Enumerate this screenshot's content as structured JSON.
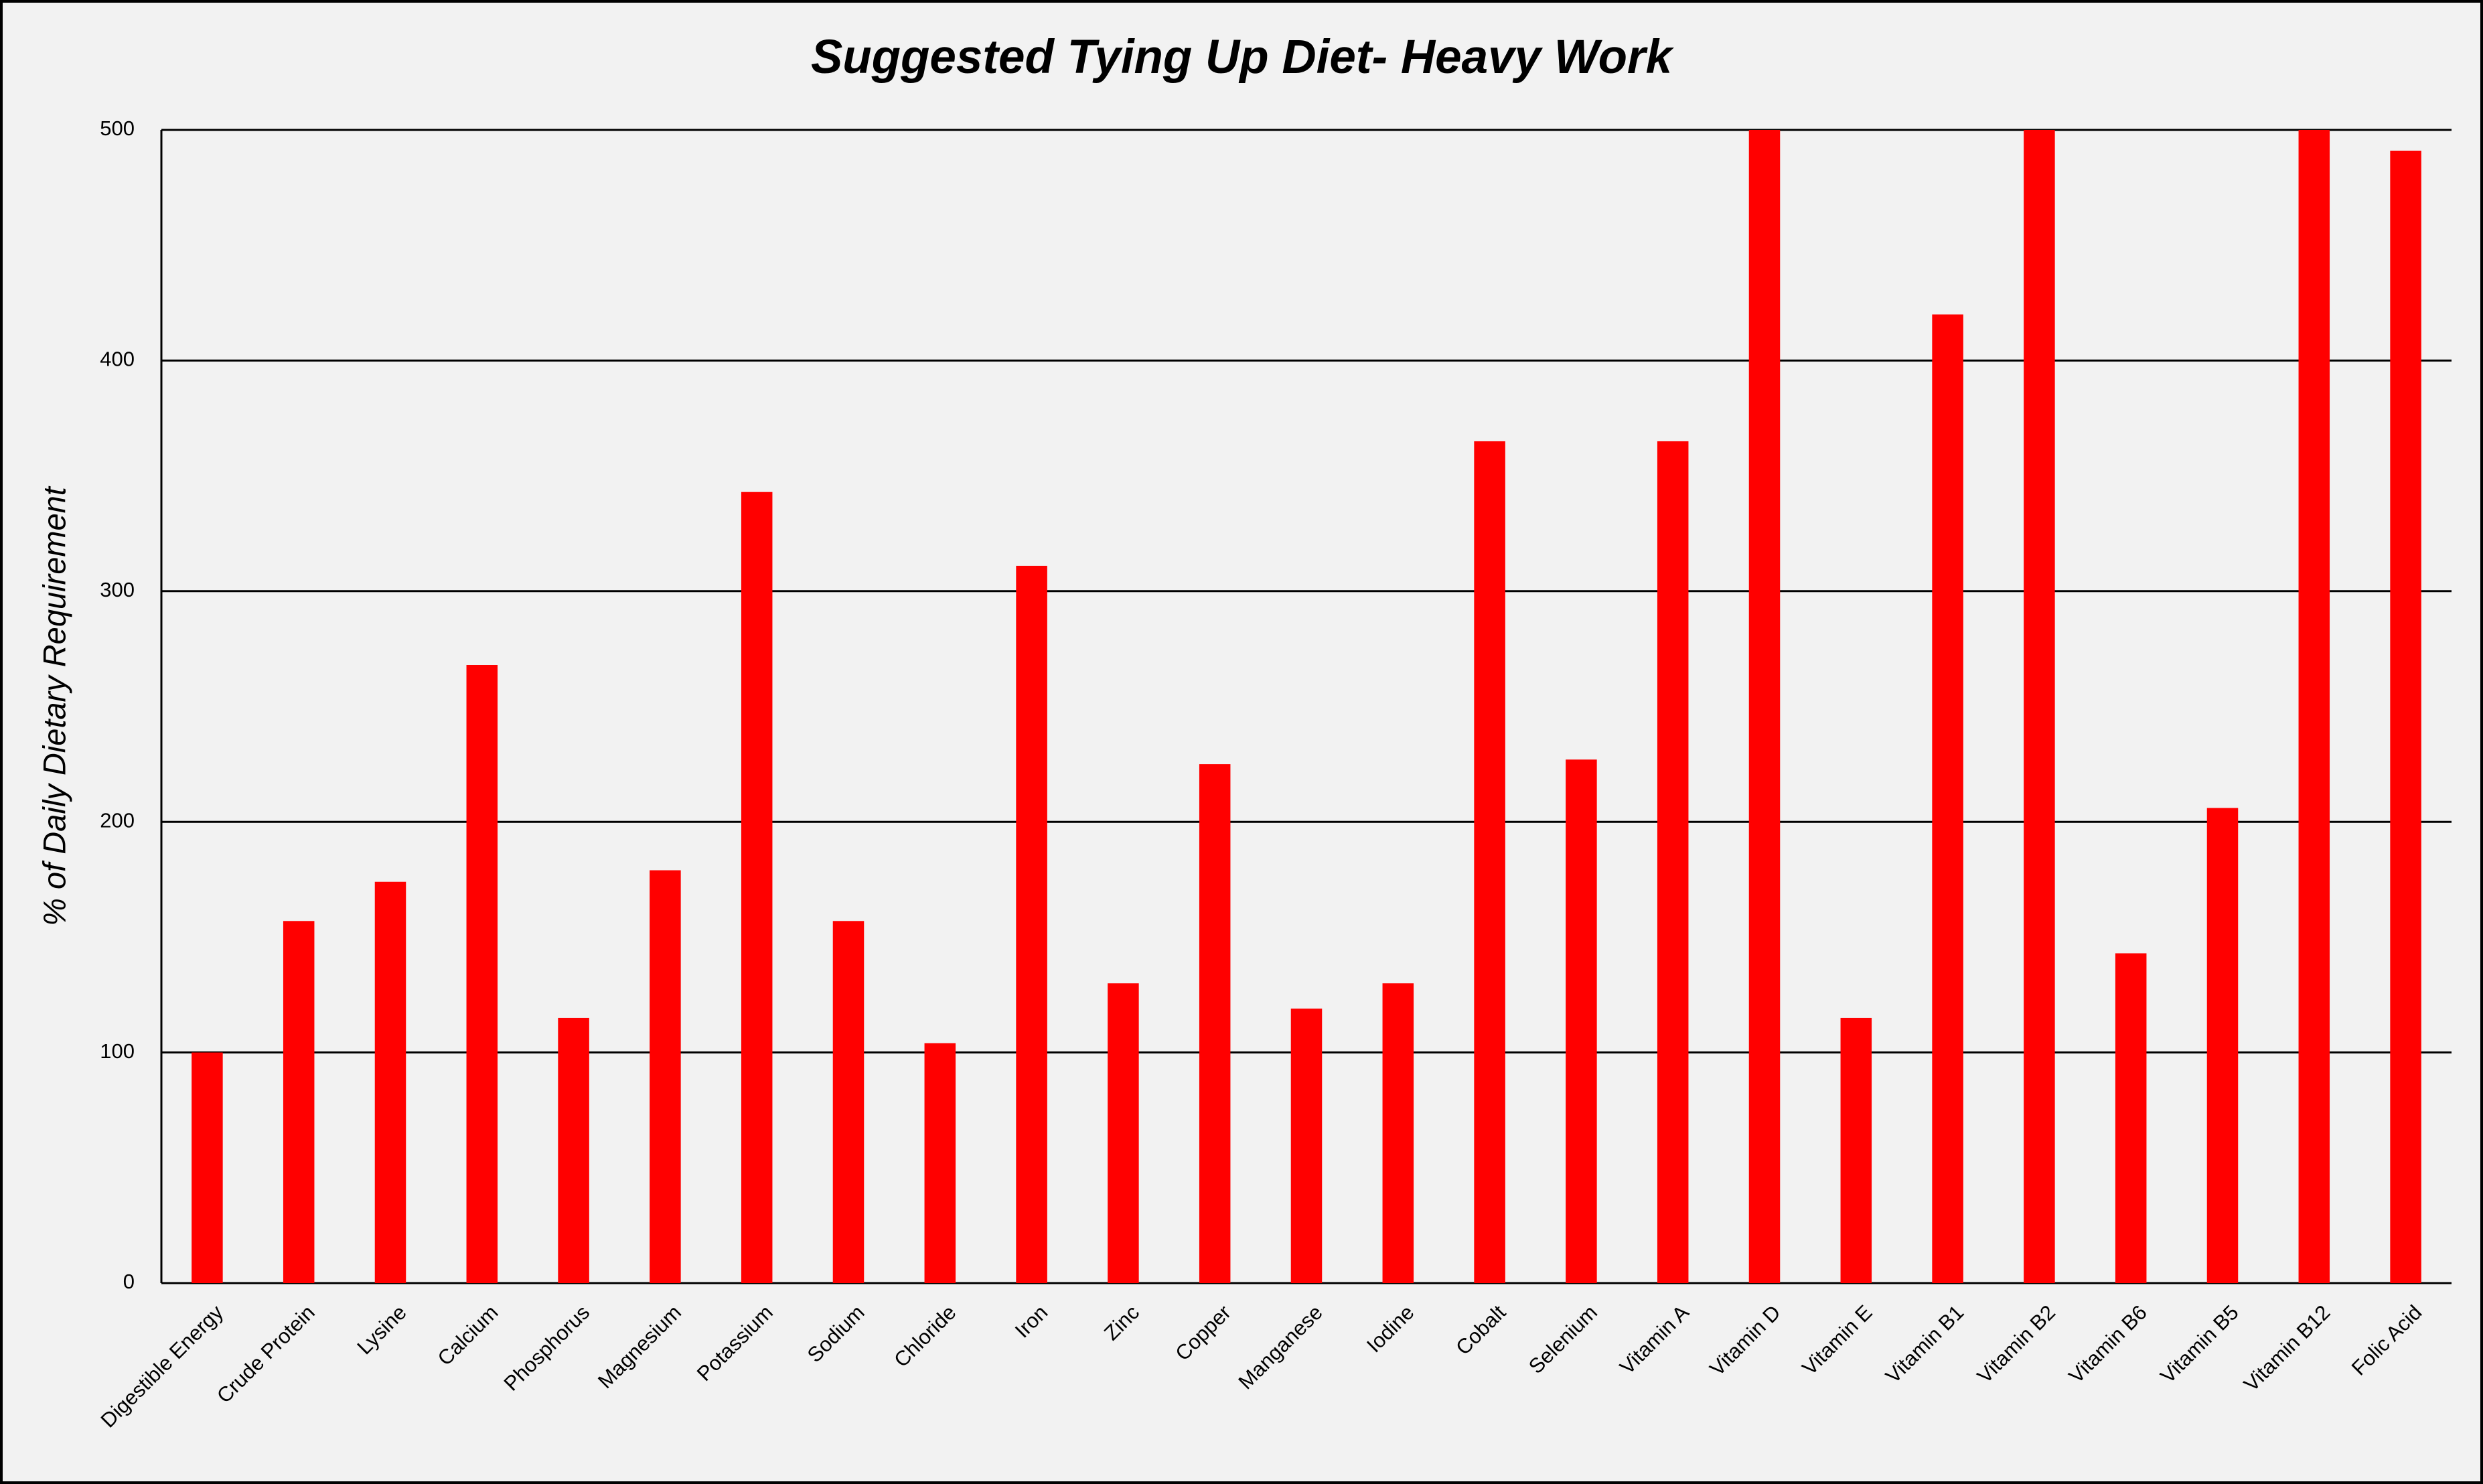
{
  "chart_data": {
    "type": "bar",
    "title": "Suggested Tying Up Diet- Heavy Work",
    "y_label": "% of Daily Dietary Requirement",
    "categories": [
      "Digestible Energy",
      "Crude Protein",
      "Lysine",
      "Calcium",
      "Phosphorus",
      "Magnesium",
      "Potassium",
      "Sodium",
      "Chloride",
      "Iron",
      "Zinc",
      "Copper",
      "Manganese",
      "Iodine",
      "Cobalt",
      "Selenium",
      "Vitamin A",
      "Vitamin D",
      "Vitamin E",
      "Vitamin B1",
      "Vitamin B2",
      "Vitamin B6",
      "Vitamin B5",
      "Vitamin B12",
      "Folic Acid"
    ],
    "values": [
      100,
      157,
      174,
      268,
      115,
      179,
      343,
      157,
      104,
      311,
      130,
      225,
      119,
      130,
      365,
      227,
      365,
      500,
      115,
      420,
      500,
      143,
      206,
      500,
      491
    ],
    "color": "#ff0000",
    "ylim": [
      0,
      500
    ],
    "yticks": [
      0,
      100,
      200,
      300,
      400,
      500
    ],
    "grid": true
  }
}
